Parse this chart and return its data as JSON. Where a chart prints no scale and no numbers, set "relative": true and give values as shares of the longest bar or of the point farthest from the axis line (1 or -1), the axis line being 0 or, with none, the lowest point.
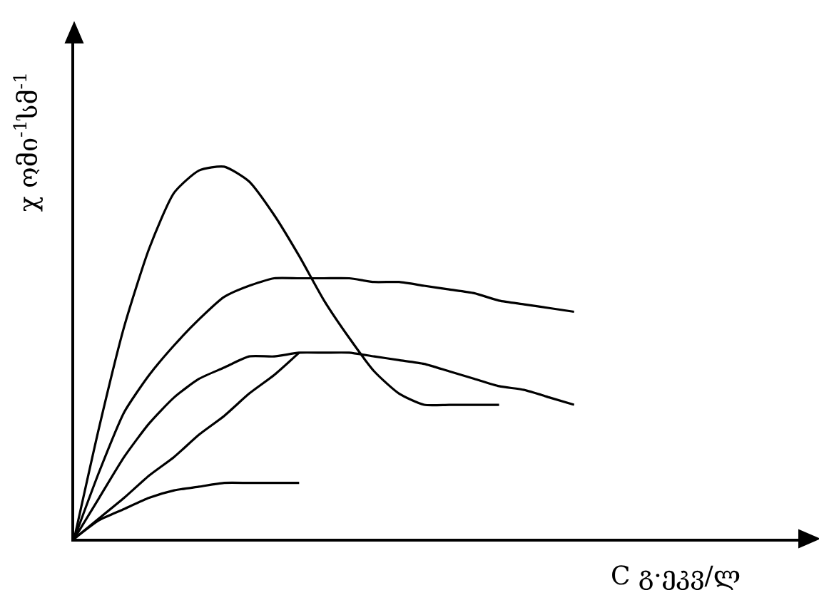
{
  "chart_data": {
    "type": "line",
    "relative": true,
    "xlabel": "C გ·ეკვ/ლ",
    "ylabel": "χ ომი$^{-1}$სმ$^{-1}$",
    "categories": [
      null,
      null,
      null,
      null,
      null,
      null,
      null,
      null,
      null,
      null,
      null,
      null,
      null,
      null,
      null,
      null,
      null,
      null,
      null,
      null,
      null,
      null,
      null,
      null,
      null,
      null,
      null,
      null,
      null,
      null
    ],
    "series": [
      {
        "color": "#000000",
        "values": [
          0,
          0.3,
          0.57,
          0.78,
          0.93,
          0.99,
          1.0,
          0.96,
          0.87,
          0.76,
          0.64,
          0.54,
          0.45,
          0.39,
          0.36,
          0.36,
          0.36,
          0.36,
          null,
          null,
          null,
          null,
          null,
          null,
          null,
          null,
          null,
          null,
          null,
          null
        ]
      },
      {
        "color": "#000000",
        "values": [
          0,
          0.18,
          0.34,
          0.44,
          0.52,
          0.59,
          0.65,
          0.68,
          0.7,
          0.7,
          0.7,
          0.7,
          0.69,
          0.69,
          0.68,
          0.67,
          0.66,
          0.64,
          0.63,
          0.62,
          0.61,
          null,
          null,
          null,
          null,
          null,
          null,
          null,
          null,
          null
        ]
      },
      {
        "color": "#000000",
        "values": [
          0,
          0.11,
          0.22,
          0.31,
          0.38,
          0.43,
          0.46,
          0.49,
          0.49,
          0.5,
          0.5,
          0.5,
          0.49,
          0.48,
          0.47,
          0.45,
          0.43,
          0.41,
          0.4,
          0.38,
          0.36,
          null,
          null,
          null,
          null,
          null,
          null,
          null,
          null,
          null
        ]
      },
      {
        "color": "#000000",
        "values": [
          0,
          0.055,
          0.11,
          0.17,
          0.22,
          0.28,
          0.33,
          0.39,
          0.44,
          0.5,
          null,
          null,
          null,
          null,
          null,
          null,
          null,
          null,
          null,
          null,
          null,
          null,
          null,
          null,
          null,
          null,
          null,
          null,
          null,
          null
        ]
      },
      {
        "color": "#000000",
        "values": [
          0,
          0.05,
          0.08,
          0.11,
          0.13,
          0.14,
          0.15,
          0.15,
          0.15,
          0.15,
          null,
          null,
          null,
          null,
          null,
          null,
          null,
          null,
          null,
          null,
          null,
          null,
          null,
          null,
          null,
          null,
          null,
          null,
          null,
          null
        ]
      }
    ],
    "line_style": "solid",
    "marker": "none"
  }
}
